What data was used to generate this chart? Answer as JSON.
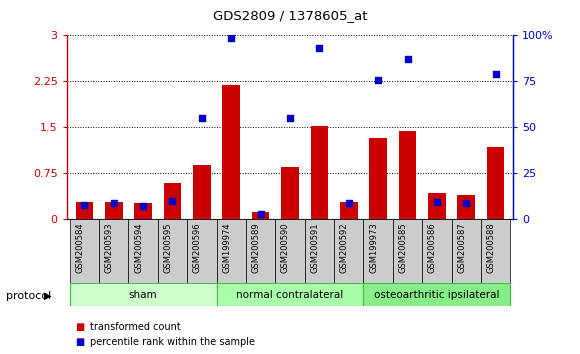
{
  "title": "GDS2809 / 1378605_at",
  "samples": [
    "GSM200584",
    "GSM200593",
    "GSM200594",
    "GSM200595",
    "GSM200596",
    "GSM199974",
    "GSM200589",
    "GSM200590",
    "GSM200591",
    "GSM200592",
    "GSM199973",
    "GSM200585",
    "GSM200586",
    "GSM200587",
    "GSM200588"
  ],
  "transformed_count": [
    0.28,
    0.29,
    0.27,
    0.6,
    0.88,
    2.19,
    0.12,
    0.85,
    1.52,
    0.28,
    1.32,
    1.44,
    0.43,
    0.4,
    1.18
  ],
  "percentile_rank": [
    8.0,
    9.0,
    7.5,
    10.0,
    55.0,
    98.5,
    3.0,
    55.0,
    93.0,
    9.0,
    76.0,
    87.0,
    9.5,
    9.0,
    79.0
  ],
  "groups": [
    {
      "label": "sham",
      "start": 0,
      "end": 5
    },
    {
      "label": "normal contralateral",
      "start": 5,
      "end": 10
    },
    {
      "label": "osteoarthritic ipsilateral",
      "start": 10,
      "end": 15
    }
  ],
  "group_colors": [
    "#ccffcc",
    "#aaffaa",
    "#88ee88"
  ],
  "bar_color": "#cc0000",
  "dot_color": "#0000cc",
  "left_ylim": [
    0,
    3.0
  ],
  "right_ylim": [
    0,
    100
  ],
  "left_yticks": [
    0,
    0.75,
    1.5,
    2.25,
    3.0
  ],
  "right_yticks": [
    0,
    25,
    50,
    75,
    100
  ],
  "left_yticklabels": [
    "0",
    "0.75",
    "1.5",
    "2.25",
    "3"
  ],
  "right_yticklabels": [
    "0",
    "25",
    "50",
    "75",
    "100%"
  ],
  "legend_items": [
    {
      "label": "transformed count",
      "color": "#cc0000"
    },
    {
      "label": "percentile rank within the sample",
      "color": "#0000cc"
    }
  ],
  "protocol_label": "protocol",
  "background_color": "#ffffff",
  "sample_box_color": "#cccccc",
  "group_border_color": "#44bb44"
}
